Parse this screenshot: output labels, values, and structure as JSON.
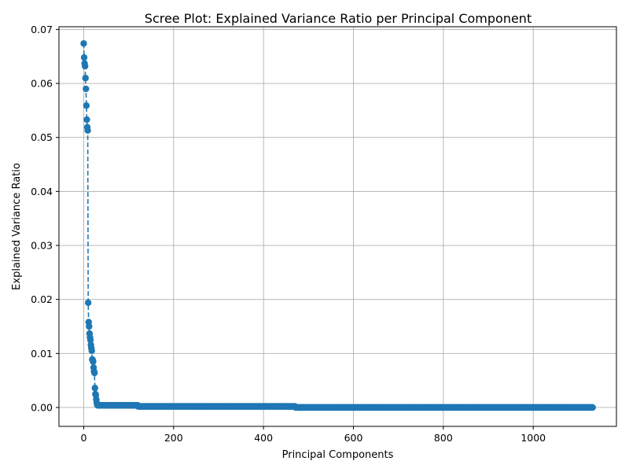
{
  "chart_data": {
    "type": "line",
    "title": "Scree Plot: Explained Variance Ratio per Principal Component",
    "xlabel": "Principal Components",
    "ylabel": "Explained Variance Ratio",
    "xlim": [
      -55,
      1185
    ],
    "ylim": [
      -0.0035,
      0.0705
    ],
    "x_ticks": [
      0,
      200,
      400,
      600,
      800,
      1000
    ],
    "x_tick_labels": [
      "0",
      "200",
      "400",
      "600",
      "800",
      "1000"
    ],
    "y_ticks": [
      0.0,
      0.01,
      0.02,
      0.03,
      0.04,
      0.05,
      0.06,
      0.07
    ],
    "y_tick_labels": [
      "0.00",
      "0.01",
      "0.02",
      "0.03",
      "0.04",
      "0.05",
      "0.06",
      "0.07"
    ],
    "grid": true,
    "marker": "circle",
    "line_style": "dashed",
    "color": "#1f77b4",
    "series": [
      {
        "head_points": [
          [
            0,
            0.0674
          ],
          [
            1,
            0.0648
          ],
          [
            2,
            0.0637
          ],
          [
            3,
            0.0632
          ],
          [
            4,
            0.061
          ],
          [
            5,
            0.059
          ],
          [
            6,
            0.0559
          ],
          [
            7,
            0.0533
          ],
          [
            8,
            0.0519
          ],
          [
            9,
            0.0513
          ],
          [
            10,
            0.0194
          ],
          [
            11,
            0.0158
          ],
          [
            12,
            0.015
          ],
          [
            13,
            0.0137
          ],
          [
            14,
            0.013
          ],
          [
            15,
            0.0125
          ],
          [
            16,
            0.0116
          ],
          [
            17,
            0.011
          ],
          [
            18,
            0.0105
          ],
          [
            19,
            0.0089
          ],
          [
            20,
            0.0088
          ],
          [
            21,
            0.0085
          ],
          [
            22,
            0.0074
          ],
          [
            23,
            0.0067
          ],
          [
            24,
            0.0064
          ],
          [
            25,
            0.0036
          ],
          [
            26,
            0.0025
          ],
          [
            27,
            0.0023
          ],
          [
            28,
            0.0015
          ],
          [
            29,
            0.0009
          ],
          [
            30,
            0.0005
          ]
        ],
        "tail_segments": [
          {
            "from": 31,
            "to": 120,
            "value": 0.0004
          },
          {
            "from": 121,
            "to": 470,
            "value": 0.0002
          },
          {
            "from": 471,
            "to": 1132,
            "value": 0.0
          }
        ]
      }
    ]
  }
}
